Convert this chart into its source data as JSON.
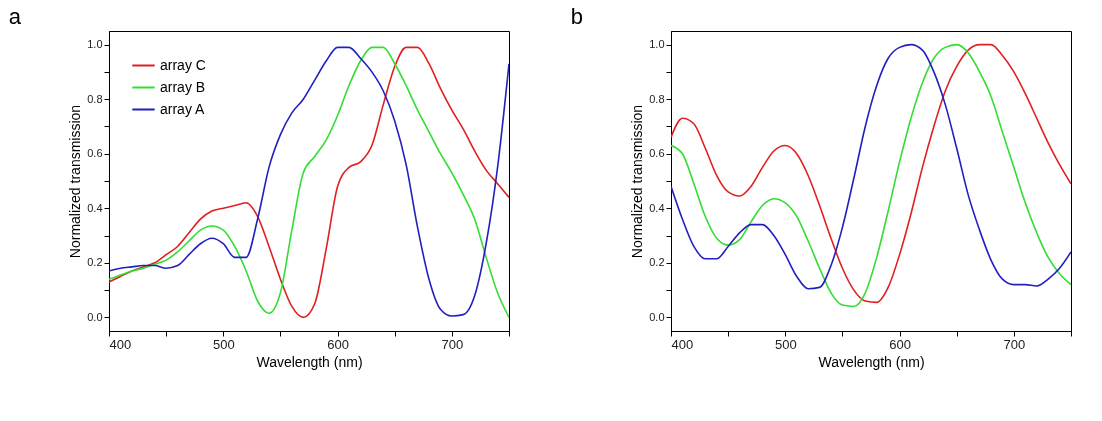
{
  "chart_data": [
    {
      "type": "line",
      "title": "a",
      "xlabel": "Wavelength (nm)",
      "ylabel": "Normalized transmission",
      "legend": "top left",
      "grid": false,
      "line_style": "solid",
      "x": [
        400,
        410,
        420,
        430,
        440,
        450,
        460,
        470,
        480,
        490,
        500,
        510,
        520,
        530,
        540,
        550,
        560,
        570,
        580,
        590,
        600,
        610,
        620,
        630,
        640,
        650,
        660,
        670,
        680,
        690,
        700,
        710,
        720,
        730,
        740,
        750
      ],
      "xlim": [
        400,
        750
      ],
      "ylim": [
        -0.05,
        1.05
      ],
      "xticks": [
        400,
        {
          "value": 450,
          "label": null
        },
        500,
        {
          "value": 550,
          "label": null
        },
        600,
        {
          "value": 650,
          "label": null
        },
        700,
        {
          "value": 750,
          "label": null
        }
      ],
      "yticks": [
        {
          "value": 0,
          "label": "0.0"
        },
        {
          "value": 0.1,
          "label": null
        },
        0.2,
        {
          "value": 0.3,
          "label": null
        },
        0.4,
        {
          "value": 0.5,
          "label": null
        },
        0.6,
        {
          "value": 0.7,
          "label": null
        },
        0.8,
        {
          "value": 0.9,
          "label": null
        },
        {
          "value": 1,
          "label": "1.0"
        }
      ],
      "series": [
        {
          "name": "array C",
          "color": "#e02020",
          "values": [
            0.13,
            0.15,
            0.17,
            0.185,
            0.2,
            0.23,
            0.26,
            0.31,
            0.36,
            0.39,
            0.4,
            0.41,
            0.42,
            0.37,
            0.26,
            0.14,
            0.04,
            0.0,
            0.05,
            0.25,
            0.48,
            0.55,
            0.57,
            0.63,
            0.78,
            0.92,
            0.99,
            0.99,
            0.93,
            0.84,
            0.76,
            0.69,
            0.61,
            0.54,
            0.49,
            0.44
          ]
        },
        {
          "name": "array B",
          "color": "#33dd33",
          "values": [
            0.14,
            0.155,
            0.17,
            0.18,
            0.195,
            0.21,
            0.24,
            0.28,
            0.32,
            0.335,
            0.32,
            0.26,
            0.17,
            0.06,
            0.015,
            0.09,
            0.32,
            0.53,
            0.59,
            0.65,
            0.74,
            0.85,
            0.94,
            0.99,
            0.99,
            0.93,
            0.85,
            0.76,
            0.68,
            0.6,
            0.53,
            0.45,
            0.36,
            0.22,
            0.09,
            0.0
          ]
        },
        {
          "name": "array A",
          "color": "#2020c0",
          "values": [
            0.17,
            0.18,
            0.185,
            0.19,
            0.19,
            0.18,
            0.19,
            0.23,
            0.27,
            0.29,
            0.27,
            0.22,
            0.22,
            0.36,
            0.55,
            0.67,
            0.75,
            0.8,
            0.87,
            0.94,
            0.99,
            0.99,
            0.95,
            0.9,
            0.83,
            0.72,
            0.56,
            0.33,
            0.14,
            0.03,
            0.005,
            0.01,
            0.08,
            0.27,
            0.55,
            0.93
          ]
        }
      ]
    },
    {
      "type": "line",
      "title": "b",
      "xlabel": "Wavelength (nm)",
      "ylabel": "Normalized transmission",
      "legend": "top left",
      "grid": false,
      "line_style": "solid",
      "x": [
        400,
        410,
        420,
        430,
        440,
        450,
        460,
        470,
        480,
        490,
        500,
        510,
        520,
        530,
        540,
        550,
        560,
        570,
        580,
        590,
        600,
        610,
        620,
        630,
        640,
        650,
        660,
        670,
        680,
        690,
        700,
        710,
        720,
        730,
        740,
        750
      ],
      "xlim": [
        400,
        750
      ],
      "ylim": [
        -0.05,
        1.05
      ],
      "xticks": [
        400,
        {
          "value": 450,
          "label": null
        },
        500,
        {
          "value": 550,
          "label": null
        },
        600,
        {
          "value": 650,
          "label": null
        },
        700,
        {
          "value": 750,
          "label": null
        }
      ],
      "yticks": [
        {
          "value": 0,
          "label": "0.0"
        },
        {
          "value": 0.1,
          "label": null
        },
        0.2,
        {
          "value": 0.3,
          "label": null
        },
        0.4,
        {
          "value": 0.5,
          "label": null
        },
        0.6,
        {
          "value": 0.7,
          "label": null
        },
        0.8,
        {
          "value": 0.9,
          "label": null
        },
        {
          "value": 1,
          "label": "1.0"
        }
      ],
      "series": [
        {
          "name": "array C",
          "color": "#e02020",
          "values": [
            0.66,
            0.73,
            0.71,
            0.62,
            0.52,
            0.46,
            0.445,
            0.48,
            0.55,
            0.61,
            0.63,
            0.6,
            0.52,
            0.41,
            0.29,
            0.18,
            0.1,
            0.06,
            0.055,
            0.11,
            0.23,
            0.38,
            0.55,
            0.7,
            0.83,
            0.92,
            0.98,
            1.0,
            1.0,
            0.96,
            0.9,
            0.82,
            0.73,
            0.64,
            0.56,
            0.49
          ]
        },
        {
          "name": "array B",
          "color": "#33dd33",
          "values": [
            0.63,
            0.6,
            0.49,
            0.37,
            0.29,
            0.265,
            0.285,
            0.35,
            0.41,
            0.435,
            0.42,
            0.37,
            0.28,
            0.18,
            0.09,
            0.045,
            0.04,
            0.09,
            0.22,
            0.39,
            0.57,
            0.73,
            0.86,
            0.95,
            0.99,
            1.0,
            0.97,
            0.9,
            0.81,
            0.68,
            0.55,
            0.42,
            0.31,
            0.22,
            0.16,
            0.12
          ]
        },
        {
          "name": "array A",
          "color": "#2020c0",
          "values": [
            0.48,
            0.36,
            0.26,
            0.215,
            0.215,
            0.26,
            0.31,
            0.34,
            0.34,
            0.3,
            0.23,
            0.15,
            0.105,
            0.11,
            0.19,
            0.33,
            0.51,
            0.7,
            0.85,
            0.95,
            0.99,
            1.0,
            0.98,
            0.9,
            0.78,
            0.62,
            0.45,
            0.32,
            0.21,
            0.14,
            0.12,
            0.12,
            0.115,
            0.14,
            0.18,
            0.24
          ]
        }
      ]
    }
  ]
}
